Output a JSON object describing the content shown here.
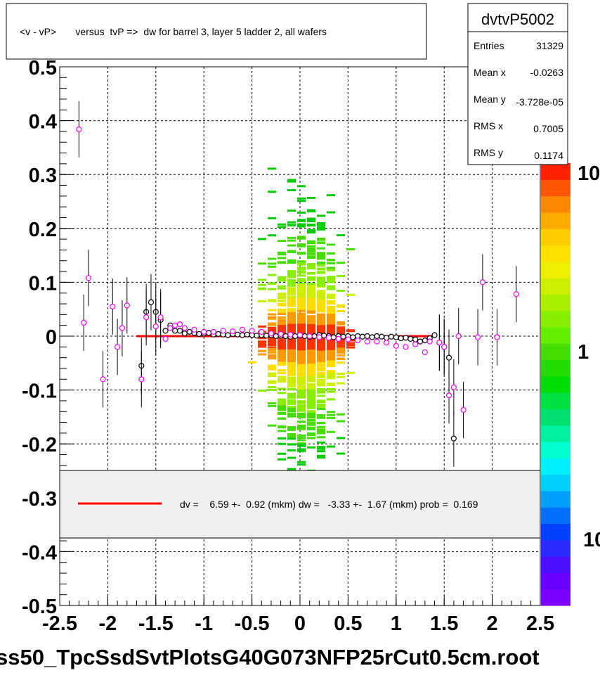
{
  "title": "<v - vP>       versus  tvP =>  dw for barrel 3, layer 5 ladder 2, all wafers",
  "stats": {
    "name": "dvtvP5002",
    "rows": [
      {
        "label": "Entries",
        "value": "31329"
      },
      {
        "label": "Mean x",
        "value": "-0.0263"
      },
      {
        "label": "Mean y",
        "value": "-3.728e-05"
      },
      {
        "label": "RMS x",
        "value": "0.7005"
      },
      {
        "label": "RMS y",
        "value": "0.1174"
      }
    ]
  },
  "legend": {
    "text": "dv =    6.59 +-  0.92 (mkm) dw =   -3.33 +-  1.67 (mkm) prob =  0.169",
    "line_color": "#ff0000"
  },
  "footer": "ss50_TpcSsdSvtPlotsG40G073NFP25rCut0.5cm.root",
  "colorbar": {
    "labels": [
      "10",
      "1",
      "10"
    ]
  },
  "chart_data": {
    "type": "scatter",
    "xlim": [
      -2.5,
      2.5
    ],
    "ylim": [
      -0.5,
      0.5
    ],
    "x_ticks": [
      "-2.5",
      "-2",
      "-1.5",
      "-1",
      "-0.5",
      "0",
      "0.5",
      "1",
      "1.5",
      "2",
      "2.5"
    ],
    "y_ticks": [
      "0.5",
      "0.4",
      "0.3",
      "0.2",
      "0.1",
      "0",
      "-0.1",
      "-0.2",
      "-0.3",
      "-0.4",
      "-0.5"
    ],
    "grid": true,
    "colors": {
      "fit_line": "#ff0000",
      "black_points": "#000000",
      "magenta_points": "#ff00ff",
      "density": "#00cc00"
    },
    "fit_line": {
      "x": [
        -1.7,
        1.4
      ],
      "y": [
        0.0,
        0.0
      ]
    },
    "series": [
      {
        "points": [
          [
            -1.65,
            -0.055
          ],
          [
            -1.6,
            0.045
          ],
          [
            -1.55,
            0.063
          ],
          [
            -1.5,
            0.045
          ],
          [
            -1.45,
            0.03
          ],
          [
            -1.4,
            0.01
          ],
          [
            -1.35,
            0.02
          ],
          [
            -1.3,
            0.01
          ],
          [
            -1.25,
            0.01
          ],
          [
            -1.2,
            0.005
          ],
          [
            -1.15,
            0.008
          ],
          [
            -1.1,
            0.006
          ],
          [
            -1.05,
            0.004
          ],
          [
            -1.0,
            0.005
          ],
          [
            -0.95,
            0.006
          ],
          [
            -0.9,
            0.003
          ],
          [
            -0.85,
            0.004
          ],
          [
            -0.8,
            0.003
          ],
          [
            -0.75,
            0.002
          ],
          [
            -0.7,
            0.004
          ],
          [
            -0.65,
            0.003
          ],
          [
            -0.6,
            0.002
          ],
          [
            -0.55,
            0.003
          ],
          [
            -0.5,
            0.002
          ],
          [
            -0.45,
            0.001
          ],
          [
            -0.4,
            0.002
          ],
          [
            -0.35,
            0.001
          ],
          [
            -0.3,
            0.002
          ],
          [
            -0.25,
            0.0
          ],
          [
            -0.2,
            0.001
          ],
          [
            -0.15,
            0.0
          ],
          [
            -0.1,
            -0.001
          ],
          [
            -0.05,
            0.0
          ],
          [
            0.0,
            0.001
          ],
          [
            0.05,
            0.0
          ],
          [
            0.1,
            -0.001
          ],
          [
            0.15,
            0.0
          ],
          [
            0.2,
            0.002
          ],
          [
            0.25,
            0.001
          ],
          [
            0.3,
            0.0
          ],
          [
            0.35,
            -0.002
          ],
          [
            0.4,
            0.0
          ],
          [
            0.45,
            -0.001
          ],
          [
            0.5,
            0.0
          ],
          [
            0.55,
            -0.002
          ],
          [
            0.6,
            0.0
          ],
          [
            0.65,
            -0.001
          ],
          [
            0.7,
            0.0
          ],
          [
            0.75,
            -0.002
          ],
          [
            0.8,
            0.0
          ],
          [
            0.85,
            -0.001
          ],
          [
            0.9,
            -0.003
          ],
          [
            0.95,
            -0.001
          ],
          [
            1.0,
            -0.002
          ],
          [
            1.05,
            -0.004
          ],
          [
            1.1,
            -0.003
          ],
          [
            1.15,
            -0.005
          ],
          [
            1.2,
            -0.006
          ],
          [
            1.25,
            -0.01
          ],
          [
            1.3,
            -0.008
          ],
          [
            1.35,
            -0.004
          ],
          [
            1.4,
            0.002
          ],
          [
            1.45,
            -0.012
          ],
          [
            1.5,
            -0.02
          ],
          [
            1.55,
            -0.04
          ],
          [
            1.6,
            -0.19
          ]
        ]
      },
      {
        "points": [
          [
            -2.3,
            0.384
          ],
          [
            -2.25,
            0.025
          ],
          [
            -2.2,
            0.108
          ],
          [
            -2.05,
            -0.08
          ],
          [
            -1.95,
            0.055
          ],
          [
            -1.9,
            -0.02
          ],
          [
            -1.85,
            0.015
          ],
          [
            -1.8,
            0.057
          ],
          [
            -1.65,
            -0.08
          ],
          [
            -1.6,
            0.035
          ],
          [
            -1.5,
            0.018
          ],
          [
            -1.45,
            0.035
          ],
          [
            -1.4,
            -0.005
          ],
          [
            -1.35,
            0.015
          ],
          [
            -1.3,
            0.02
          ],
          [
            -1.25,
            0.022
          ],
          [
            -1.2,
            0.015
          ],
          [
            -1.1,
            0.012
          ],
          [
            -1.0,
            0.008
          ],
          [
            -0.9,
            0.008
          ],
          [
            -0.8,
            0.01
          ],
          [
            -0.7,
            0.009
          ],
          [
            -0.6,
            0.012
          ],
          [
            -0.5,
            0.01
          ],
          [
            -0.4,
            0.008
          ],
          [
            -0.3,
            0.005
          ],
          [
            -0.2,
            0.004
          ],
          [
            -0.1,
            0.003
          ],
          [
            0.0,
            0.002
          ],
          [
            0.1,
            0.0
          ],
          [
            0.2,
            -0.002
          ],
          [
            0.3,
            -0.003
          ],
          [
            0.4,
            -0.005
          ],
          [
            0.5,
            -0.006
          ],
          [
            0.6,
            -0.008
          ],
          [
            0.7,
            -0.01
          ],
          [
            0.8,
            -0.01
          ],
          [
            0.9,
            -0.012
          ],
          [
            1.0,
            -0.018
          ],
          [
            1.1,
            -0.02
          ],
          [
            1.2,
            -0.015
          ],
          [
            1.3,
            -0.03
          ],
          [
            1.35,
            -0.01
          ],
          [
            1.45,
            -0.012
          ],
          [
            1.5,
            -0.02
          ],
          [
            1.55,
            -0.11
          ],
          [
            1.6,
            -0.095
          ],
          [
            1.65,
            0.0
          ],
          [
            1.7,
            -0.137
          ],
          [
            1.85,
            -0.002
          ],
          [
            1.9,
            0.1
          ],
          [
            2.05,
            -0.002
          ],
          [
            2.25,
            0.078
          ]
        ]
      }
    ]
  }
}
